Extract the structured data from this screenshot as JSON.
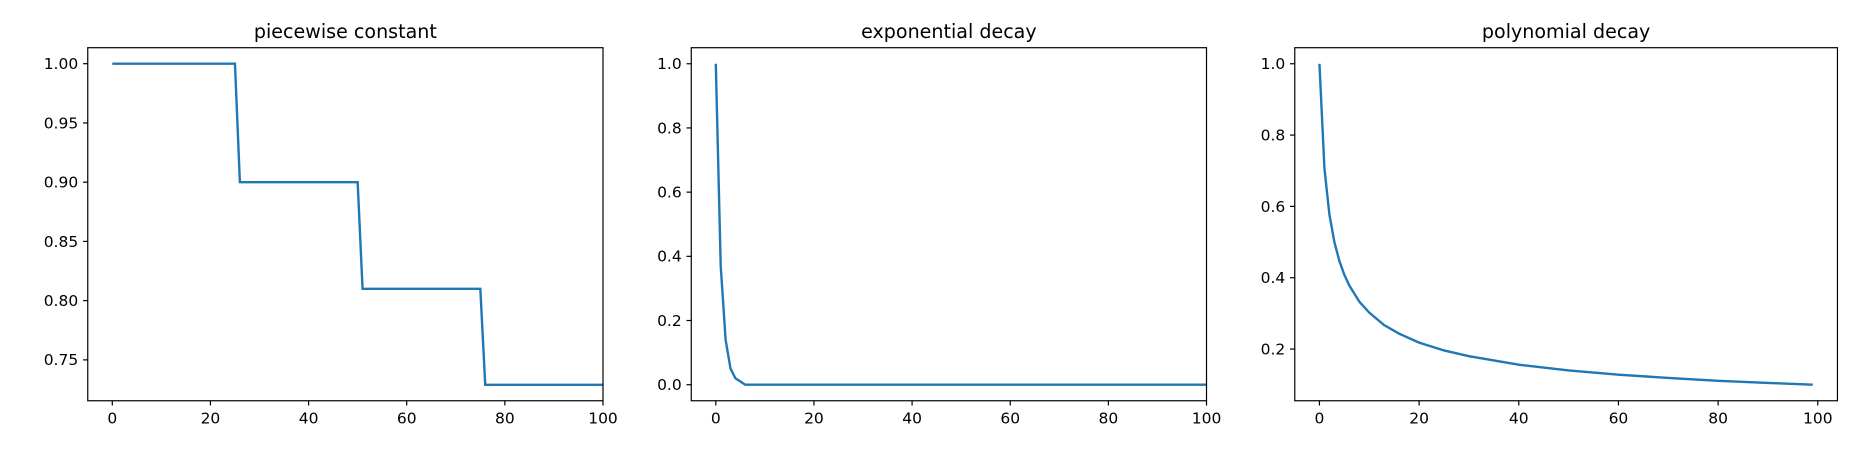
{
  "chart_data": [
    {
      "type": "line",
      "title": "piecewise constant",
      "x": [
        0,
        25,
        26,
        50,
        51,
        75,
        76,
        100
      ],
      "series": [
        {
          "color": "#1f77b4",
          "values": [
            1.0,
            1.0,
            0.9,
            0.9,
            0.81,
            0.81,
            0.729,
            0.729
          ]
        }
      ],
      "xlim": [
        -5,
        100
      ],
      "xticks": [
        0,
        20,
        40,
        60,
        80,
        100
      ],
      "ylim": [
        0.7155,
        1.0135
      ],
      "yticks": [
        0.75,
        {
          "value": 0.8,
          "label": "0.80"
        },
        0.85,
        {
          "value": 0.9,
          "label": "0.90"
        },
        0.95,
        {
          "value": 1.0,
          "label": "1.00"
        }
      ]
    },
    {
      "type": "line",
      "title": "exponential decay",
      "x": [
        0,
        1,
        2,
        3,
        4,
        5,
        6,
        7,
        8,
        100
      ],
      "series": [
        {
          "color": "#1f77b4",
          "values": [
            1.0,
            0.37,
            0.14,
            0.05,
            0.02,
            0.01,
            0,
            0,
            0,
            0
          ]
        }
      ],
      "xlim": [
        -5,
        100
      ],
      "xticks": [
        0,
        20,
        40,
        60,
        80,
        100
      ],
      "ylim": [
        -0.05,
        1.05
      ],
      "yticks": [
        {
          "value": 0,
          "label": "0.0"
        },
        0.2,
        0.4,
        0.6,
        0.8,
        {
          "value": 1,
          "label": "1.0"
        }
      ]
    },
    {
      "type": "line",
      "title": "polynomial decay",
      "x": [
        0,
        1,
        2,
        3,
        4,
        5,
        6,
        8,
        10,
        13,
        16,
        20,
        25,
        30,
        40,
        50,
        60,
        70,
        80,
        90,
        99
      ],
      "series": [
        {
          "color": "#1f77b4",
          "values": [
            1.0,
            0.707,
            0.577,
            0.5,
            0.447,
            0.408,
            0.378,
            0.333,
            0.302,
            0.267,
            0.243,
            0.218,
            0.196,
            0.18,
            0.156,
            0.14,
            0.128,
            0.119,
            0.111,
            0.105,
            0.1
          ]
        }
      ],
      "xlim": [
        -4.95,
        103.95
      ],
      "xticks": [
        0,
        20,
        40,
        60,
        80,
        100
      ],
      "ylim": [
        0.055,
        1.045
      ],
      "yticks": [
        0.2,
        0.4,
        0.6,
        0.8,
        {
          "value": 1,
          "label": "1.0"
        }
      ]
    }
  ]
}
